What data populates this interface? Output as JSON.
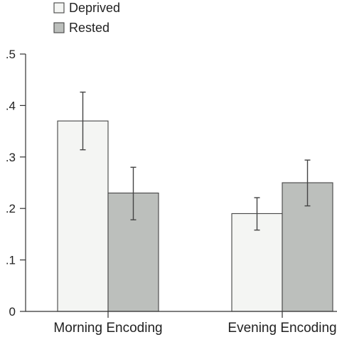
{
  "chart_data": {
    "type": "bar",
    "categories": [
      "Morning Encoding",
      "Evening Encoding"
    ],
    "series": [
      {
        "name": "Deprived",
        "color": "#f4f5f3",
        "values": [
          0.37,
          0.19
        ],
        "error_low": [
          0.314,
          0.158
        ],
        "error_high": [
          0.426,
          0.221
        ]
      },
      {
        "name": "Rested",
        "color": "#bcbfbc",
        "values": [
          0.23,
          0.25
        ],
        "error_low": [
          0.178,
          0.205
        ],
        "error_high": [
          0.28,
          0.294
        ]
      }
    ],
    "y_ticks": [
      0,
      0.1,
      0.2,
      0.3,
      0.4,
      0.5
    ],
    "y_tick_labels": [
      "0",
      ".1",
      ".2",
      ".3",
      ".4",
      ".5"
    ],
    "ylim": [
      0,
      0.5
    ],
    "title": "",
    "xlabel": "",
    "ylabel": "",
    "grid": false,
    "legend_position": "top-left"
  }
}
